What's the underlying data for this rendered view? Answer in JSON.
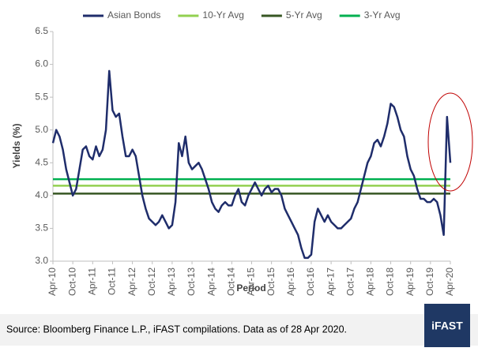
{
  "chart_data": {
    "type": "line",
    "y_label": "Yields (%)",
    "x_label": "Period",
    "source": "Source: Bloomberg Finance L.P., iFAST compilations. Data as of 28 Apr 2020.",
    "logo": "iFAST",
    "categories": [
      "Apr-10",
      null,
      null,
      null,
      null,
      null,
      "Oct-10",
      null,
      null,
      null,
      null,
      null,
      "Apr-11",
      null,
      null,
      null,
      null,
      null,
      "Oct-11",
      null,
      null,
      null,
      null,
      null,
      "Apr-12",
      null,
      null,
      null,
      null,
      null,
      "Oct-12",
      null,
      null,
      null,
      null,
      null,
      "Apr-13",
      null,
      null,
      null,
      null,
      null,
      "Oct-13",
      null,
      null,
      null,
      null,
      null,
      "Apr-14",
      null,
      null,
      null,
      null,
      null,
      "Oct-14",
      null,
      null,
      null,
      null,
      null,
      "Apr-15",
      null,
      null,
      null,
      null,
      null,
      "Oct-15",
      null,
      null,
      null,
      null,
      null,
      "Apr-16",
      null,
      null,
      null,
      null,
      null,
      "Oct-16",
      null,
      null,
      null,
      null,
      null,
      "Apr-17",
      null,
      null,
      null,
      null,
      null,
      "Oct-17",
      null,
      null,
      null,
      null,
      null,
      "Apr-18",
      null,
      null,
      null,
      null,
      null,
      "Oct-18",
      null,
      null,
      null,
      null,
      null,
      "Apr-19",
      null,
      null,
      null,
      null,
      null,
      "Oct-19",
      null,
      null,
      null,
      null,
      null,
      "Apr-20"
    ],
    "series": [
      {
        "name": "Asian Bonds",
        "color": "#1f2d6b",
        "values": [
          4.8,
          5.0,
          4.9,
          4.7,
          4.4,
          4.2,
          4.0,
          4.1,
          4.4,
          4.7,
          4.75,
          4.6,
          4.55,
          4.75,
          4.6,
          4.7,
          5.0,
          5.9,
          5.3,
          5.2,
          5.25,
          4.9,
          4.6,
          4.6,
          4.7,
          4.6,
          4.3,
          4.0,
          3.8,
          3.65,
          3.6,
          3.55,
          3.6,
          3.7,
          3.6,
          3.5,
          3.55,
          3.9,
          4.8,
          4.6,
          4.9,
          4.5,
          4.4,
          4.45,
          4.5,
          4.4,
          4.25,
          4.1,
          3.9,
          3.8,
          3.75,
          3.85,
          3.9,
          3.85,
          3.85,
          4.0,
          4.1,
          3.9,
          3.85,
          4.0,
          4.1,
          4.2,
          4.1,
          4.0,
          4.1,
          4.15,
          4.05,
          4.1,
          4.1,
          4.0,
          3.8,
          3.7,
          3.6,
          3.5,
          3.4,
          3.2,
          3.05,
          3.05,
          3.1,
          3.6,
          3.8,
          3.7,
          3.6,
          3.7,
          3.6,
          3.55,
          3.5,
          3.5,
          3.55,
          3.6,
          3.65,
          3.8,
          3.9,
          4.1,
          4.3,
          4.5,
          4.6,
          4.8,
          4.85,
          4.75,
          4.9,
          5.1,
          5.4,
          5.35,
          5.2,
          5.0,
          4.9,
          4.6,
          4.4,
          4.3,
          4.1,
          3.95,
          3.95,
          3.9,
          3.9,
          3.95,
          3.9,
          3.7,
          3.4,
          5.2,
          4.5
        ]
      }
    ],
    "reference_lines": [
      {
        "name": "10-Yr Avg",
        "color": "#92d050",
        "value": 4.15
      },
      {
        "name": "5-Yr Avg",
        "color": "#375623",
        "value": 4.03
      },
      {
        "name": "3-Yr Avg",
        "color": "#00b050",
        "value": 4.25
      }
    ],
    "ylim": [
      3,
      6.5
    ],
    "yticks": [
      {
        "value": 3,
        "label": "3.0"
      },
      3.5,
      {
        "value": 4,
        "label": "4.0"
      },
      4.5,
      {
        "value": 5,
        "label": "5.0"
      },
      5.5,
      {
        "value": 6,
        "label": "6.0"
      },
      6.5
    ],
    "grid": false
  }
}
